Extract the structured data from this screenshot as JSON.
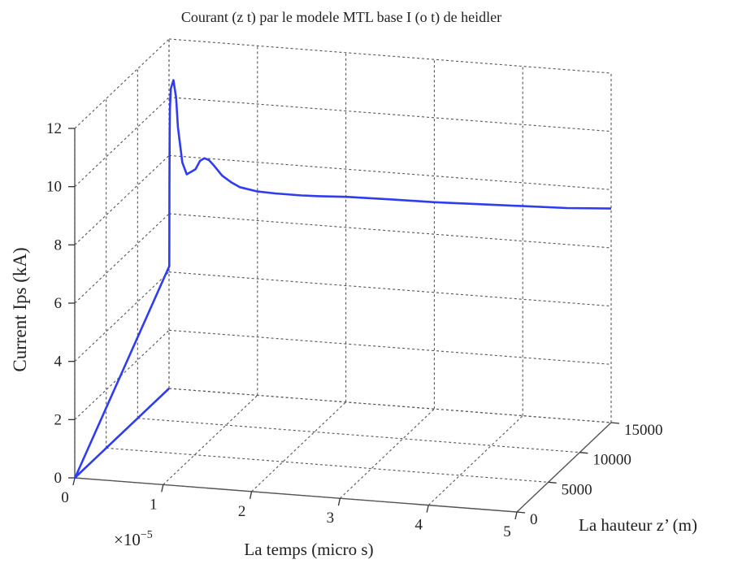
{
  "chart_data": {
    "type": "line",
    "projection": "3d",
    "title": "Courant (z t) par le modele MTL base I (o t) de heidler",
    "xlabel": "La temps (micro s)",
    "x_exponent_label": "×10",
    "x_exponent_power": "−5",
    "ylabel": "La hauteur z’ (m)",
    "zlabel": "Current Ips (kA)",
    "xlim": [
      0,
      5
    ],
    "ylim": [
      0,
      15000
    ],
    "zlim": [
      0,
      12
    ],
    "x_ticks": [
      0,
      1,
      2,
      3,
      4,
      5
    ],
    "x_tick_labels": [
      "0",
      "1",
      "2",
      "3",
      "4",
      "5"
    ],
    "y_ticks": [
      0,
      5000,
      10000,
      15000
    ],
    "y_tick_labels": [
      "0",
      "5000",
      "10000",
      "15000"
    ],
    "z_ticks": [
      0,
      2,
      4,
      6,
      8,
      10,
      12
    ],
    "z_tick_labels": [
      "0",
      "2",
      "4",
      "6",
      "8",
      "10",
      "12"
    ],
    "grid": true,
    "series": [
      {
        "color": "#2f3cf0",
        "x": [
          0,
          0,
          0.003,
          0.003,
          0.005,
          0.007,
          0.01,
          0.02,
          0.05,
          0.08,
          0.1,
          0.15,
          0.2,
          0.3,
          0.35,
          0.4,
          0.45,
          0.5,
          0.6,
          0.7,
          0.8,
          1.0,
          1.2,
          1.5,
          1.7,
          2.0,
          2.5,
          3.0,
          3.5,
          4.0,
          4.5,
          5.0
        ],
        "y": [
          15000,
          0,
          0,
          15000,
          15000,
          15000,
          15000,
          15000,
          15000,
          15000,
          15000,
          15000,
          15000,
          15000,
          15000,
          15000,
          15000,
          15000,
          15000,
          15000,
          15000,
          15000,
          15000,
          15000,
          15000,
          15000,
          15000,
          15000,
          15000,
          15000,
          15000,
          15000
        ],
        "z": [
          0,
          0,
          0,
          4.2,
          7.0,
          8.8,
          9.6,
          10.3,
          10.6,
          10.0,
          9.0,
          7.8,
          7.4,
          7.6,
          7.9,
          8.0,
          7.95,
          7.8,
          7.45,
          7.25,
          7.1,
          7.0,
          6.98,
          6.98,
          7.0,
          7.05,
          7.08,
          7.1,
          7.15,
          7.2,
          7.25,
          7.35
        ]
      }
    ]
  }
}
